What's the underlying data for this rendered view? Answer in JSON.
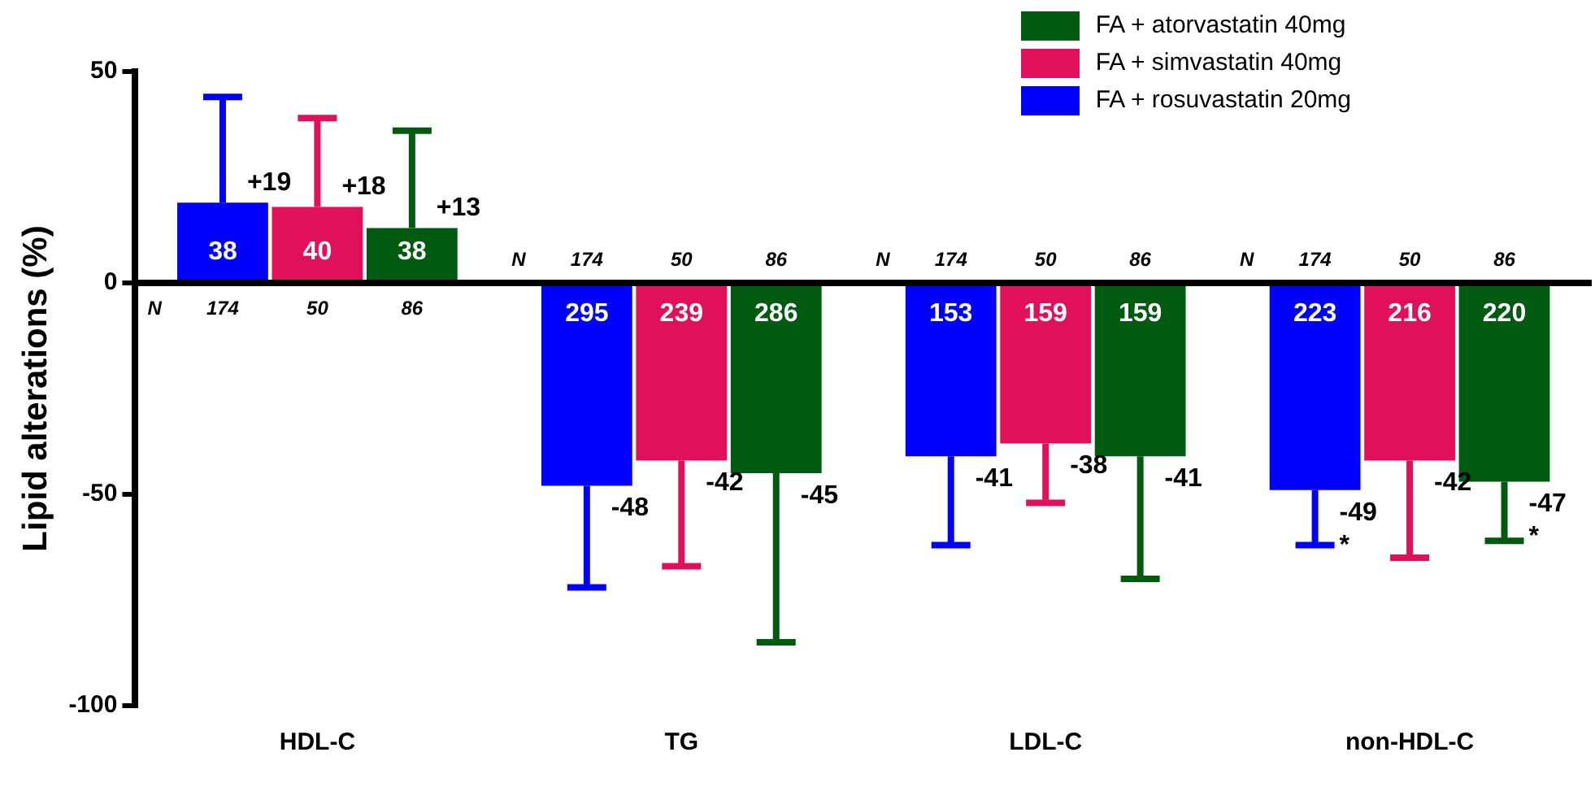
{
  "chart_data": {
    "type": "bar",
    "ylabel": "Lipid alterations (%)",
    "categories": [
      "HDL-C",
      "TG",
      "LDL-C",
      "non-HDL-C"
    ],
    "series": [
      {
        "name": "FA + rosuvastatin 20mg",
        "color": "#0000ff",
        "values": [
          19,
          -48,
          -41,
          -49
        ],
        "errors": [
          [
            19,
            44
          ],
          [
            -72,
            -48
          ],
          [
            -62,
            -41
          ],
          [
            -62,
            -49
          ]
        ],
        "value_labels": [
          "+19",
          "-48",
          "-41",
          "-49\n*"
        ]
      },
      {
        "name": "FA + simvastatin 40mg",
        "color": "#e0105a",
        "values": [
          18,
          -42,
          -38,
          -42
        ],
        "errors": [
          [
            18,
            39
          ],
          [
            -67,
            -42
          ],
          [
            -52,
            -38
          ],
          [
            -65,
            -42
          ]
        ],
        "value_labels": [
          "+18",
          "-42",
          "-38",
          "-42"
        ]
      },
      {
        "name": "FA + atorvastatin 40mg",
        "color": "#005a10",
        "values": [
          13,
          -45,
          -41,
          -47
        ],
        "errors": [
          [
            13,
            36
          ],
          [
            -85,
            -45
          ],
          [
            -70,
            -41
          ],
          [
            -61,
            -47
          ]
        ],
        "value_labels": [
          "+13",
          "-45",
          "-41",
          "-47\n*"
        ]
      }
    ],
    "ylim": [
      -100,
      50
    ],
    "yticks": [
      -100,
      -50,
      0,
      50
    ],
    "grid": false,
    "legend": "top right",
    "ref_lines": [
      {
        "axis": "y",
        "value": 0,
        "color": "#000000"
      }
    ],
    "annotations": [
      "N",
      "174",
      "50",
      "86",
      "N",
      "174",
      "50",
      "86",
      "N",
      "174",
      "50",
      "86",
      "N",
      "174",
      "50",
      "86",
      "38",
      "40",
      "38",
      "295",
      "239",
      "286",
      "153",
      "159",
      "159",
      "223",
      "216",
      "220"
    ]
  }
}
